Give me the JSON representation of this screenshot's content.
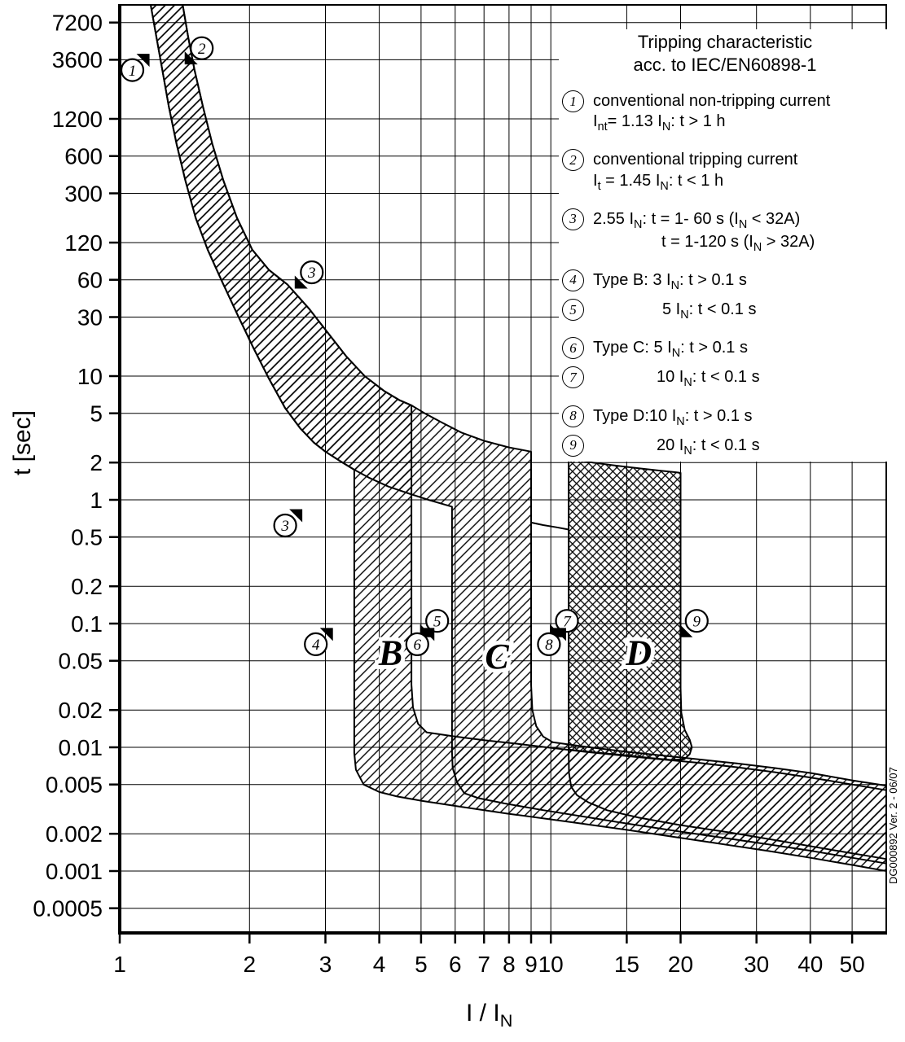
{
  "page": {
    "background": "#ffffff",
    "ink": "#000000"
  },
  "watermark": "DG000892 Ver. 2 - 06/07",
  "axes": {
    "x_title": "I / I~N~",
    "y_title": "t [sec]"
  },
  "legend": {
    "title_lines": [
      "Tripping characteristic",
      "acc. to IEC/EN60898-1"
    ],
    "items": [
      {
        "num": "1",
        "gap": true,
        "lines": [
          {
            "indent": 0,
            "text": "conventional non-tripping current"
          },
          {
            "indent": 0,
            "text": "I~nt~= 1.13 I~N~: t > 1 h"
          }
        ]
      },
      {
        "num": "2",
        "gap": true,
        "lines": [
          {
            "indent": 0,
            "text": "conventional tripping current"
          },
          {
            "indent": 0,
            "text": "I~t~ = 1.45 I~N~: t < 1 h"
          }
        ]
      },
      {
        "num": "3",
        "gap": true,
        "lines": [
          {
            "indent": 0,
            "text": "2.55 I~N~: t = 1- 60 s (I~N~ < 32A)"
          },
          {
            "indent": 84,
            "text": "t = 1-120 s (I~N~ > 32A)"
          }
        ]
      },
      {
        "num": "4",
        "gap": true,
        "lines": [
          {
            "indent": 0,
            "text": "Type B: 3 I~N~: t > 0.1 s"
          }
        ]
      },
      {
        "num": "5",
        "gap": false,
        "lines": [
          {
            "indent": 85,
            "text": "5 I~N~: t < 0.1 s"
          }
        ]
      },
      {
        "num": "6",
        "gap": true,
        "lines": [
          {
            "indent": 0,
            "text": "Type C: 5 I~N~: t > 0.1 s"
          }
        ]
      },
      {
        "num": "7",
        "gap": false,
        "lines": [
          {
            "indent": 78,
            "text": "10 I~N~: t < 0.1 s"
          }
        ]
      },
      {
        "num": "8",
        "gap": true,
        "lines": [
          {
            "indent": 0,
            "text": "Type D:10 I~N~: t > 0.1 s"
          }
        ]
      },
      {
        "num": "9",
        "gap": false,
        "lines": [
          {
            "indent": 78,
            "text": "20 I~N~: t < 0.1 s"
          }
        ]
      }
    ]
  },
  "chart_data": {
    "type": "area",
    "title": "Tripping characteristic acc. to IEC/EN60898-1",
    "xlabel": "I / IN",
    "ylabel": "t [sec]",
    "x_scale": "log",
    "y_scale": "log",
    "grid": "on",
    "legend_position": "inside top-right",
    "x_range": [
      1,
      60
    ],
    "y_range": [
      0.000316,
      10000
    ],
    "x_ticks": [
      1,
      2,
      3,
      4,
      5,
      6,
      7,
      8,
      9,
      10,
      15,
      20,
      30,
      40,
      50
    ],
    "y_ticks": [
      7200,
      3600,
      1200,
      600,
      300,
      120,
      60,
      30,
      10,
      5,
      2,
      1,
      0.5,
      0.2,
      0.1,
      0.05,
      0.02,
      0.01,
      0.005,
      0.002,
      0.001,
      0.0005
    ],
    "curves": {
      "thermal_upper": [
        [
          1.4,
          10000
        ],
        [
          1.44,
          5600
        ],
        [
          1.49,
          3000
        ],
        [
          1.56,
          1500
        ],
        [
          1.64,
          750
        ],
        [
          1.74,
          380
        ],
        [
          1.87,
          190
        ],
        [
          2.03,
          105
        ],
        [
          2.22,
          72
        ],
        [
          2.45,
          55
        ],
        [
          2.75,
          35
        ],
        [
          3.05,
          22
        ],
        [
          3.35,
          14.5
        ],
        [
          3.7,
          10
        ],
        [
          4.1,
          7.6
        ],
        [
          4.45,
          6.4
        ],
        [
          4.75,
          5.8
        ],
        [
          5.1,
          5.0
        ],
        [
          5.6,
          4.2
        ],
        [
          6.2,
          3.5
        ],
        [
          7.0,
          3.0
        ],
        [
          8.0,
          2.65
        ],
        [
          9.0,
          2.45
        ],
        [
          10,
          2.3
        ],
        [
          11,
          2.15
        ],
        [
          12.5,
          2.0
        ],
        [
          14,
          1.9
        ],
        [
          16,
          1.8
        ],
        [
          18,
          1.72
        ],
        [
          19.5,
          1.67
        ],
        [
          20,
          1.65
        ]
      ],
      "thermal_lower": [
        [
          1.18,
          10000
        ],
        [
          1.215,
          5600
        ],
        [
          1.255,
          3000
        ],
        [
          1.3,
          1500
        ],
        [
          1.355,
          750
        ],
        [
          1.42,
          380
        ],
        [
          1.5,
          190
        ],
        [
          1.6,
          105
        ],
        [
          1.72,
          60
        ],
        [
          1.87,
          32
        ],
        [
          2.04,
          17
        ],
        [
          2.22,
          9.5
        ],
        [
          2.42,
          5.5
        ],
        [
          2.62,
          3.8
        ],
        [
          2.82,
          2.9
        ],
        [
          3.0,
          2.45
        ],
        [
          3.25,
          2.05
        ],
        [
          3.5,
          1.75
        ],
        [
          3.8,
          1.5
        ],
        [
          4.2,
          1.28
        ],
        [
          4.7,
          1.12
        ],
        [
          5.2,
          1.0
        ],
        [
          5.9,
          0.88
        ],
        [
          6.6,
          0.8
        ],
        [
          7.5,
          0.73
        ],
        [
          8.5,
          0.67
        ],
        [
          9.4,
          0.63
        ],
        [
          10.2,
          0.6
        ],
        [
          11.0,
          0.57
        ]
      ]
    },
    "regions": [
      {
        "name": "type-b-band",
        "fill": "light",
        "points": [
          [
            1.4,
            10000
          ],
          [
            1.44,
            5600
          ],
          [
            1.49,
            3000
          ],
          [
            1.56,
            1500
          ],
          [
            1.64,
            750
          ],
          [
            1.74,
            380
          ],
          [
            1.87,
            190
          ],
          [
            2.03,
            105
          ],
          [
            2.22,
            72
          ],
          [
            2.45,
            55
          ],
          [
            2.75,
            35
          ],
          [
            3.05,
            22
          ],
          [
            3.35,
            14.5
          ],
          [
            3.7,
            10
          ],
          [
            4.1,
            7.6
          ],
          [
            4.45,
            6.4
          ],
          [
            4.75,
            5.8
          ],
          [
            4.75,
            0.032
          ],
          [
            4.79,
            0.021
          ],
          [
            4.92,
            0.0155
          ],
          [
            5.15,
            0.0132
          ],
          [
            6,
            0.0122
          ],
          [
            7,
            0.0114
          ],
          [
            8.5,
            0.0106
          ],
          [
            10,
            0.0099
          ],
          [
            12,
            0.0092
          ],
          [
            15,
            0.0085
          ],
          [
            18,
            0.008
          ],
          [
            22,
            0.0075
          ],
          [
            27,
            0.0069
          ],
          [
            33,
            0.0063
          ],
          [
            40,
            0.0057
          ],
          [
            50,
            0.005
          ],
          [
            60,
            0.0045
          ],
          [
            60,
            0.001
          ],
          [
            50,
            0.00112
          ],
          [
            40,
            0.00128
          ],
          [
            32,
            0.00145
          ],
          [
            25,
            0.00165
          ],
          [
            20,
            0.00185
          ],
          [
            15,
            0.00215
          ],
          [
            11,
            0.0025
          ],
          [
            8,
            0.0029
          ],
          [
            6.2,
            0.0033
          ],
          [
            5.0,
            0.0037
          ],
          [
            4.4,
            0.004
          ],
          [
            4.0,
            0.00435
          ],
          [
            3.68,
            0.005
          ],
          [
            3.53,
            0.0066
          ],
          [
            3.5,
            0.009
          ],
          [
            3.5,
            1.75
          ],
          [
            3.25,
            2.05
          ],
          [
            3.0,
            2.45
          ],
          [
            2.82,
            2.9
          ],
          [
            2.62,
            3.8
          ],
          [
            2.42,
            5.5
          ],
          [
            2.22,
            9.5
          ],
          [
            2.04,
            17
          ],
          [
            1.87,
            32
          ],
          [
            1.72,
            60
          ],
          [
            1.6,
            105
          ],
          [
            1.5,
            190
          ],
          [
            1.42,
            380
          ],
          [
            1.355,
            750
          ],
          [
            1.3,
            1500
          ],
          [
            1.255,
            3000
          ],
          [
            1.215,
            5600
          ],
          [
            1.18,
            10000
          ]
        ]
      },
      {
        "name": "type-c-band",
        "fill": "light",
        "points": [
          [
            1.4,
            10000
          ],
          [
            1.44,
            5600
          ],
          [
            1.49,
            3000
          ],
          [
            1.56,
            1500
          ],
          [
            1.64,
            750
          ],
          [
            1.74,
            380
          ],
          [
            1.87,
            190
          ],
          [
            2.03,
            105
          ],
          [
            2.22,
            72
          ],
          [
            2.45,
            55
          ],
          [
            2.75,
            35
          ],
          [
            3.05,
            22
          ],
          [
            3.35,
            14.5
          ],
          [
            3.7,
            10
          ],
          [
            4.1,
            7.6
          ],
          [
            4.45,
            6.4
          ],
          [
            4.75,
            5.8
          ],
          [
            5.1,
            5.0
          ],
          [
            5.6,
            4.2
          ],
          [
            6.2,
            3.5
          ],
          [
            7.0,
            3.0
          ],
          [
            8.0,
            2.65
          ],
          [
            9.0,
            2.45
          ],
          [
            9.0,
            0.032
          ],
          [
            9.06,
            0.02
          ],
          [
            9.25,
            0.0148
          ],
          [
            9.6,
            0.0122
          ],
          [
            10.1,
            0.011
          ],
          [
            12,
            0.0101
          ],
          [
            15,
            0.0092
          ],
          [
            18,
            0.0086
          ],
          [
            22,
            0.008
          ],
          [
            27,
            0.0074
          ],
          [
            33,
            0.0068
          ],
          [
            40,
            0.0062
          ],
          [
            50,
            0.0054
          ],
          [
            60,
            0.0049
          ],
          [
            60,
            0.00115
          ],
          [
            50,
            0.00128
          ],
          [
            40,
            0.00146
          ],
          [
            32,
            0.00164
          ],
          [
            25,
            0.00186
          ],
          [
            20,
            0.00208
          ],
          [
            15,
            0.00242
          ],
          [
            12,
            0.00274
          ],
          [
            9.5,
            0.00312
          ],
          [
            7.8,
            0.00352
          ],
          [
            6.8,
            0.00388
          ],
          [
            6.3,
            0.00425
          ],
          [
            6.06,
            0.0052
          ],
          [
            5.92,
            0.0068
          ],
          [
            5.9,
            0.0092
          ],
          [
            5.9,
            0.88
          ],
          [
            5.2,
            1.0
          ],
          [
            4.7,
            1.12
          ],
          [
            4.2,
            1.28
          ],
          [
            3.8,
            1.5
          ],
          [
            3.5,
            1.75
          ],
          [
            3.25,
            2.05
          ],
          [
            3.0,
            2.45
          ],
          [
            2.82,
            2.9
          ],
          [
            2.62,
            3.8
          ],
          [
            2.42,
            5.5
          ],
          [
            2.22,
            9.5
          ],
          [
            2.04,
            17
          ],
          [
            1.87,
            32
          ],
          [
            1.72,
            60
          ],
          [
            1.6,
            105
          ],
          [
            1.5,
            190
          ],
          [
            1.42,
            380
          ],
          [
            1.355,
            750
          ],
          [
            1.3,
            1500
          ],
          [
            1.255,
            3000
          ],
          [
            1.215,
            5600
          ],
          [
            1.18,
            10000
          ]
        ]
      },
      {
        "name": "type-d-band",
        "fill": "dark",
        "points": [
          [
            11.0,
            2.15
          ],
          [
            12.5,
            2.0
          ],
          [
            14,
            1.9
          ],
          [
            16,
            1.8
          ],
          [
            18,
            1.72
          ],
          [
            19.5,
            1.67
          ],
          [
            20,
            1.65
          ],
          [
            20,
            0.03
          ],
          [
            20.08,
            0.019
          ],
          [
            20.45,
            0.0138
          ],
          [
            21.0,
            0.0115
          ],
          [
            21.25,
            0.01
          ],
          [
            21.0,
            0.0088
          ],
          [
            20.4,
            0.008
          ],
          [
            19,
            0.0079
          ],
          [
            17,
            0.0082
          ],
          [
            15,
            0.0086
          ],
          [
            13,
            0.009
          ],
          [
            11.5,
            0.0094
          ],
          [
            11.0,
            0.0096
          ]
        ]
      }
    ],
    "extra_lines": [
      {
        "name": "type-d-lower-tail",
        "points": [
          [
            11.0,
            0.0096
          ],
          [
            11.02,
            0.0062
          ],
          [
            11.15,
            0.0048
          ],
          [
            11.5,
            0.0041
          ],
          [
            12.2,
            0.0036
          ],
          [
            13.5,
            0.0031
          ],
          [
            16,
            0.0027
          ],
          [
            20,
            0.00235
          ],
          [
            26,
            0.00205
          ],
          [
            34,
            0.00175
          ],
          [
            45,
            0.00148
          ],
          [
            60,
            0.00125
          ]
        ]
      },
      {
        "name": "lower-curve-c-d-gap",
        "points": [
          [
            9.0,
            0.655
          ],
          [
            9.6,
            0.625
          ],
          [
            10.3,
            0.6
          ],
          [
            11.0,
            0.575
          ]
        ]
      }
    ],
    "zone_labels": [
      {
        "text": "B",
        "x": 4.25,
        "y": 0.059
      },
      {
        "text": "C",
        "x": 7.5,
        "y": 0.055
      },
      {
        "text": "D",
        "x": 16,
        "y": 0.059
      }
    ],
    "markers": [
      {
        "label": "1",
        "x": 1.07,
        "y": 2970,
        "flag": "ne"
      },
      {
        "label": "2",
        "x": 1.55,
        "y": 4470,
        "flag": "sw"
      },
      {
        "label": "3",
        "x": 2.79,
        "y": 69,
        "flag": "sw"
      },
      {
        "label": "3",
        "x": 2.42,
        "y": 0.62,
        "flag": "ne"
      },
      {
        "label": "4",
        "x": 2.85,
        "y": 0.068,
        "flag": "ne"
      },
      {
        "label": "5",
        "x": 5.45,
        "y": 0.105,
        "flag": "sw"
      },
      {
        "label": "6",
        "x": 4.9,
        "y": 0.068,
        "flag": "ne"
      },
      {
        "label": "7",
        "x": 10.9,
        "y": 0.105,
        "flag": "sw"
      },
      {
        "label": "8",
        "x": 9.9,
        "y": 0.068,
        "flag": "ne"
      },
      {
        "label": "9",
        "x": 21.8,
        "y": 0.105,
        "flag": "sw"
      }
    ]
  }
}
